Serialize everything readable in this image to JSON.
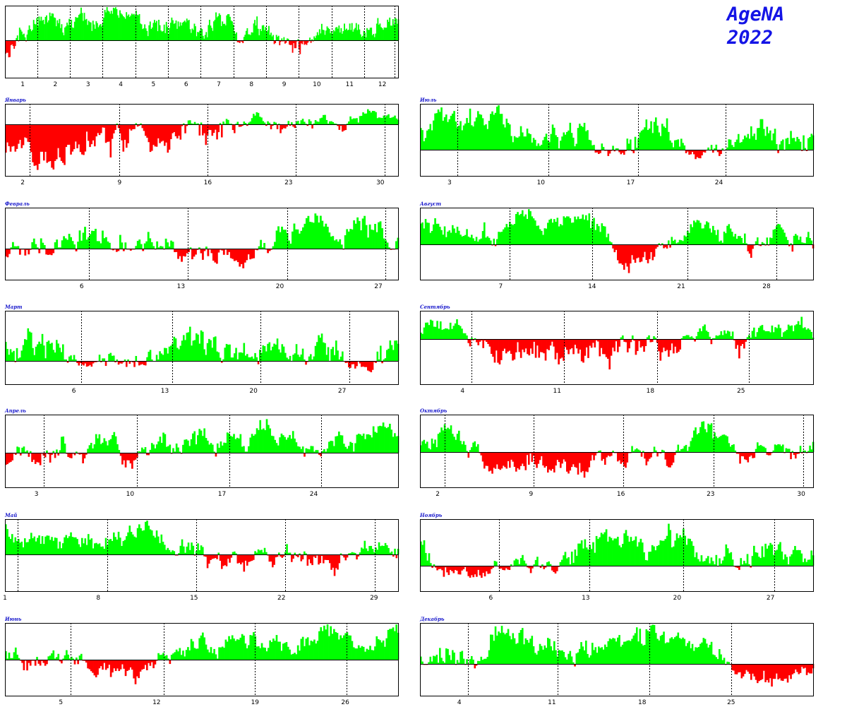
{
  "brand": {
    "name": "AgeNA",
    "year": "2022"
  },
  "colors": {
    "up": "#00ff00",
    "down": "#ff0000",
    "axis": "#000000",
    "frame": "#000000",
    "title": "#1a1acc"
  },
  "chart_data": [
    {
      "id": "year",
      "type": "bar",
      "title": "",
      "ticks": [
        "1",
        "2",
        "3",
        "4",
        "5",
        "6",
        "7",
        "8",
        "9",
        "10",
        "11",
        "12"
      ],
      "n_points": 365,
      "seed": 3,
      "trend": [
        -0.3,
        0.4,
        0.6,
        0.8,
        0.5,
        0.5,
        0.6,
        0.4,
        -0.1,
        0.4,
        0.4,
        0.5
      ],
      "ylim": [
        -1,
        1
      ]
    },
    {
      "id": "jan",
      "type": "bar",
      "title": "Январь",
      "ticks": [
        "2",
        "9",
        "16",
        "23",
        "30"
      ],
      "tick_days": [
        2,
        9,
        16,
        23,
        30
      ],
      "days": 31,
      "seed": 11,
      "trend": [
        -0.4,
        -0.5,
        -0.5,
        -0.4,
        -0.4,
        -0.3,
        0.1,
        -0.2,
        0.3,
        0.3,
        -0.1,
        0.1,
        0.3,
        -0.1
      ],
      "ylim": [
        -1,
        1
      ]
    },
    {
      "id": "feb",
      "type": "bar",
      "title": "Февраль",
      "ticks": [
        "6",
        "13",
        "20",
        "27"
      ],
      "tick_days": [
        6,
        13,
        20,
        27
      ],
      "days": 28,
      "seed": 21,
      "trend": [
        -0.3,
        0.1,
        0.2,
        0.3,
        0.3,
        -0.1,
        -0.1,
        0.4,
        0.6,
        0.6,
        0.3
      ],
      "ylim": [
        -1,
        1
      ]
    },
    {
      "id": "mar",
      "type": "bar",
      "title": "Март",
      "ticks": [
        "6",
        "13",
        "20",
        "27"
      ],
      "tick_days": [
        6,
        13,
        20,
        27
      ],
      "days": 31,
      "seed": 31,
      "trend": [
        0.5,
        0.3,
        0.0,
        0.2,
        0.0,
        0.2,
        0.5,
        0.1,
        0.1,
        0.0,
        0.2,
        -0.2,
        0.1
      ],
      "ylim": [
        -1,
        1
      ]
    },
    {
      "id": "apr",
      "type": "bar",
      "title": "Апрель",
      "ticks": [
        "3",
        "10",
        "17",
        "24"
      ],
      "tick_days": [
        3,
        10,
        17,
        24
      ],
      "days": 30,
      "seed": 41,
      "trend": [
        -0.1,
        -0.1,
        0.1,
        0.2,
        -0.05,
        0.3,
        0.4,
        0.4,
        0.3,
        0.3,
        0.4,
        0.6
      ],
      "ylim": [
        -1,
        1
      ]
    },
    {
      "id": "may",
      "type": "bar",
      "title": "Май",
      "ticks": [
        "1",
        "8",
        "15",
        "22",
        "29"
      ],
      "tick_days": [
        1,
        8,
        15,
        22,
        29
      ],
      "days": 31,
      "seed": 51,
      "trend": [
        0.7,
        0.4,
        0.4,
        0.5,
        0.3,
        0.2,
        -0.2,
        -0.2,
        0.2,
        -0.2,
        0.2,
        0.1
      ],
      "ylim": [
        -1,
        1
      ]
    },
    {
      "id": "jun",
      "type": "bar",
      "title": "Июнь",
      "ticks": [
        "5",
        "12",
        "19",
        "26"
      ],
      "tick_days": [
        5,
        12,
        19,
        26
      ],
      "days": 30,
      "seed": 61,
      "trend": [
        0.2,
        0.1,
        -0.2,
        -0.4,
        -0.2,
        0.2,
        0.4,
        0.7,
        0.1,
        0.7,
        0.5,
        0.8
      ],
      "ylim": [
        -1,
        1
      ]
    },
    {
      "id": "jul",
      "type": "bar",
      "title": "Июль",
      "ticks": [
        "3",
        "10",
        "17",
        "24"
      ],
      "tick_days": [
        3,
        10,
        17,
        24
      ],
      "days": 31,
      "seed": 71,
      "trend": [
        0.6,
        0.8,
        0.6,
        0.5,
        0.4,
        0.4,
        0.5,
        -0.2,
        0.5,
        0.4,
        -0.4,
        0.1,
        0.3,
        0.0,
        0.4
      ],
      "ylim": [
        -1,
        1
      ]
    },
    {
      "id": "aug",
      "type": "bar",
      "title": "Август",
      "ticks": [
        "7",
        "14",
        "21",
        "28"
      ],
      "tick_days": [
        7,
        14,
        21,
        28
      ],
      "days": 31,
      "seed": 81,
      "trend": [
        0.5,
        0.4,
        0.3,
        0.5,
        0.6,
        0.5,
        0.3,
        -0.4,
        -0.2,
        0.5,
        0.5,
        -0.1,
        0.3,
        0.3
      ],
      "ylim": [
        -1,
        1
      ]
    },
    {
      "id": "sep",
      "type": "bar",
      "title": "Сентябрь",
      "ticks": [
        "4",
        "11",
        "18",
        "25"
      ],
      "tick_days": [
        4,
        11,
        18,
        25
      ],
      "days": 30,
      "seed": 91,
      "trend": [
        0.3,
        0.4,
        -0.3,
        -0.3,
        -0.2,
        -0.3,
        -0.1,
        -0.1,
        0.2,
        -0.1,
        0.4,
        0.5
      ],
      "ylim": [
        -1,
        1
      ]
    },
    {
      "id": "oct",
      "type": "bar",
      "title": "Октябрь",
      "ticks": [
        "2",
        "9",
        "16",
        "23",
        "30"
      ],
      "tick_days": [
        2,
        9,
        16,
        23,
        30
      ],
      "days": 31,
      "seed": 101,
      "trend": [
        0.4,
        0.5,
        -0.3,
        -0.1,
        -0.4,
        -0.2,
        0.1,
        -0.1,
        0.7,
        -0.2,
        0.1,
        -0.1
      ],
      "ylim": [
        -1,
        1
      ]
    },
    {
      "id": "nov",
      "type": "bar",
      "title": "Ноябрь",
      "ticks": [
        "6",
        "13",
        "20",
        "27"
      ],
      "tick_days": [
        6,
        13,
        20,
        27
      ],
      "days": 30,
      "seed": 111,
      "trend": [
        0.3,
        -0.3,
        -0.3,
        0.1,
        0.1,
        0.5,
        0.7,
        0.4,
        0.6,
        0.4,
        0.3,
        0.4,
        0.3
      ],
      "ylim": [
        -1,
        1
      ]
    },
    {
      "id": "dec",
      "type": "bar",
      "title": "Декабрь",
      "ticks": [
        "4",
        "11",
        "18",
        "25"
      ],
      "tick_days": [
        4,
        11,
        18,
        25
      ],
      "days": 31,
      "seed": 121,
      "trend": [
        0.1,
        0.3,
        0.5,
        0.5,
        0.3,
        0.4,
        0.6,
        0.6,
        0.4,
        -0.4,
        -0.5,
        -0.3
      ],
      "ylim": [
        -1,
        1
      ]
    }
  ]
}
